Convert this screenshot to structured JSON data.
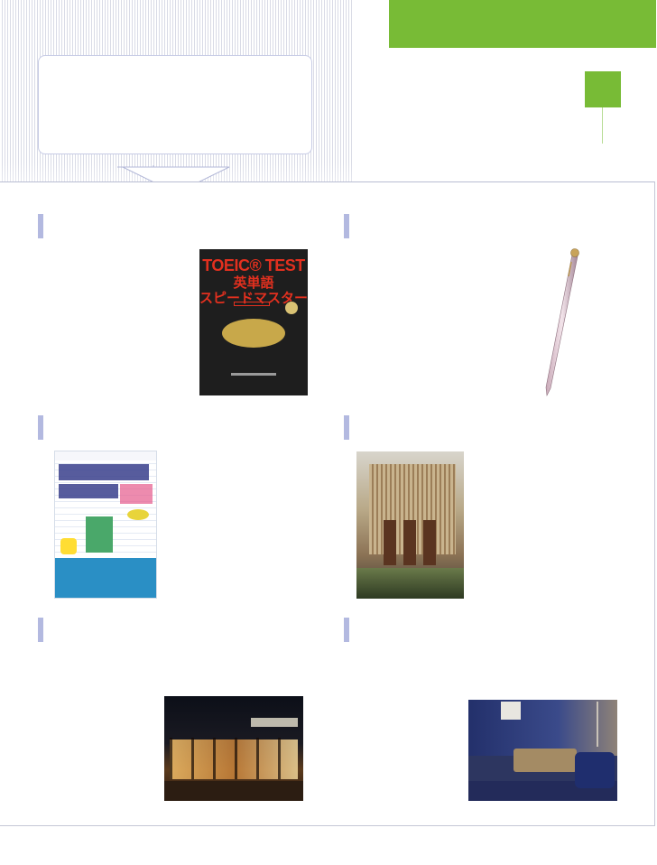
{
  "colors": {
    "accent_green": "#78bb36",
    "marker_blue": "#b3b9e0",
    "stripe": "#d9dbe6",
    "box_border": "#c7cce6"
  },
  "images": {
    "toeic_book": {
      "title_line1": "TOEIC® TEST",
      "title_line2": "英単語",
      "title_line3": "スピードマスター"
    }
  }
}
